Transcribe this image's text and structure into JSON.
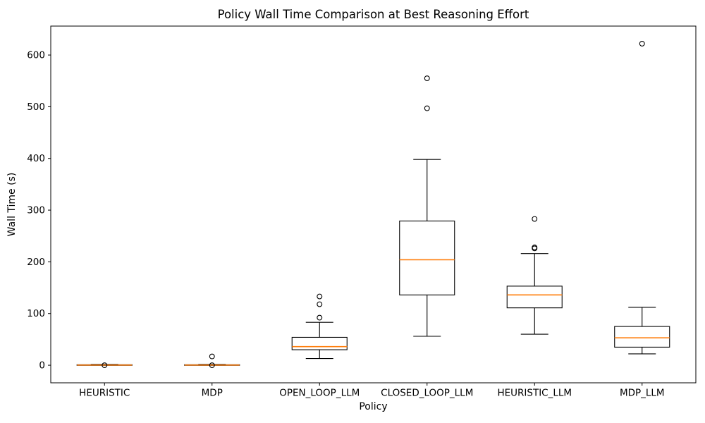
{
  "chart_data": {
    "type": "box",
    "title": "Policy Wall Time Comparison at Best Reasoning Effort",
    "xlabel": "Policy",
    "ylabel": "Wall Time (s)",
    "categories": [
      "HEURISTIC",
      "MDP",
      "OPEN_LOOP_LLM",
      "CLOSED_LOOP_LLM",
      "HEURISTIC_LLM",
      "MDP_LLM"
    ],
    "yticks": [
      0,
      100,
      200,
      300,
      400,
      500,
      600
    ],
    "ylim": [
      -34,
      656
    ],
    "grid": false,
    "legend": "none",
    "background_color": "#ffffff",
    "box_edge_color": "#000000",
    "median_color": "#ff7f0e",
    "series": [
      {
        "name": "HEURISTIC",
        "whislo": 0,
        "q1": 0,
        "med": 0.4,
        "q3": 1,
        "whishi": 1.5,
        "fliers": [
          0
        ]
      },
      {
        "name": "MDP",
        "whislo": 0,
        "q1": 0,
        "med": 0.4,
        "q3": 1,
        "whishi": 1.5,
        "fliers": [
          0,
          17
        ]
      },
      {
        "name": "OPEN_LOOP_LLM",
        "whislo": 13,
        "q1": 30,
        "med": 36,
        "q3": 54,
        "whishi": 83,
        "fliers": [
          92,
          118,
          133
        ]
      },
      {
        "name": "CLOSED_LOOP_LLM",
        "whislo": 56,
        "q1": 136,
        "med": 204,
        "q3": 279,
        "whishi": 398,
        "fliers": [
          497,
          555
        ]
      },
      {
        "name": "HEURISTIC_LLM",
        "whislo": 60,
        "q1": 111,
        "med": 136,
        "q3": 153,
        "whishi": 216,
        "fliers": [
          226,
          228,
          283
        ]
      },
      {
        "name": "MDP_LLM",
        "whislo": 22,
        "q1": 35,
        "med": 53,
        "q3": 75,
        "whishi": 112,
        "fliers": [
          622
        ]
      }
    ]
  }
}
